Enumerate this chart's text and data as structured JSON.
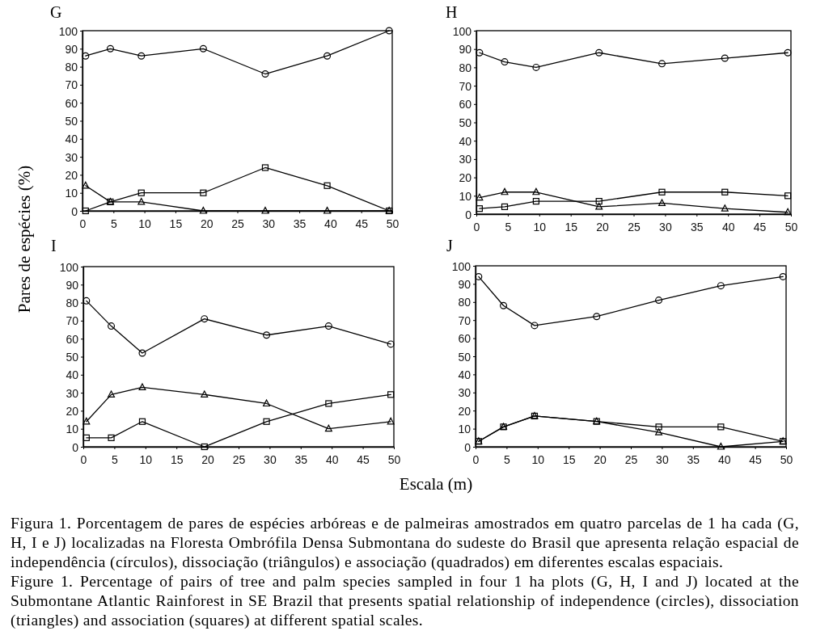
{
  "chart_data": [
    {
      "type": "line",
      "title": "G",
      "ylabel": "Pares de espécies (%)",
      "x": [
        0.5,
        4.5,
        9.5,
        19.5,
        29.5,
        39.5,
        49.5
      ],
      "xlim": [
        0,
        50
      ],
      "xticks": [
        0,
        5,
        10,
        15,
        20,
        25,
        30,
        35,
        40,
        45,
        50
      ],
      "ylim": [
        0,
        100
      ],
      "yticks": [
        0,
        10,
        20,
        30,
        40,
        50,
        60,
        70,
        80,
        90,
        100
      ],
      "series": [
        {
          "color": "#000000",
          "marker": "circle",
          "values": [
            86,
            90,
            86,
            90,
            76,
            86,
            100
          ]
        },
        {
          "color": "#000000",
          "marker": "triangle",
          "values": [
            14,
            5,
            5,
            0,
            0,
            0,
            0
          ]
        },
        {
          "color": "#000000",
          "marker": "square",
          "values": [
            0,
            5,
            10,
            10,
            24,
            14,
            0
          ]
        }
      ]
    },
    {
      "type": "line",
      "title": "H",
      "x": [
        0.5,
        4.5,
        9.5,
        19.5,
        29.5,
        39.5,
        49.5
      ],
      "xlim": [
        0,
        50
      ],
      "xticks": [
        0,
        5,
        10,
        15,
        20,
        25,
        30,
        35,
        40,
        45,
        50
      ],
      "ylim": [
        0,
        100
      ],
      "yticks": [
        0,
        10,
        20,
        30,
        40,
        50,
        60,
        70,
        80,
        90,
        100
      ],
      "series": [
        {
          "color": "#000000",
          "marker": "circle",
          "values": [
            88,
            83,
            80,
            88,
            82,
            85,
            88
          ]
        },
        {
          "color": "#000000",
          "marker": "triangle",
          "values": [
            9,
            12,
            12,
            4,
            6,
            3,
            1
          ]
        },
        {
          "color": "#000000",
          "marker": "square",
          "values": [
            3,
            4,
            7,
            7,
            12,
            12,
            10
          ]
        }
      ]
    },
    {
      "type": "line",
      "title": "I",
      "xlabel": "Escala (m)",
      "x": [
        0.5,
        4.5,
        9.5,
        19.5,
        29.5,
        39.5,
        49.5
      ],
      "xlim": [
        0,
        50
      ],
      "xticks": [
        0,
        5,
        10,
        15,
        20,
        25,
        30,
        35,
        40,
        45,
        50
      ],
      "ylim": [
        0,
        100
      ],
      "yticks": [
        0,
        10,
        20,
        30,
        40,
        50,
        60,
        70,
        80,
        90,
        100
      ],
      "series": [
        {
          "color": "#000000",
          "marker": "circle",
          "values": [
            81,
            67,
            52,
            71,
            62,
            67,
            57
          ]
        },
        {
          "color": "#000000",
          "marker": "triangle",
          "values": [
            14,
            29,
            33,
            29,
            24,
            10,
            14
          ]
        },
        {
          "color": "#000000",
          "marker": "square",
          "values": [
            5,
            5,
            14,
            0,
            14,
            24,
            29
          ]
        }
      ]
    },
    {
      "type": "line",
      "title": "J",
      "x": [
        0.5,
        4.5,
        9.5,
        19.5,
        29.5,
        39.5,
        49.5
      ],
      "xlim": [
        0,
        50
      ],
      "xticks": [
        0,
        5,
        10,
        15,
        20,
        25,
        30,
        35,
        40,
        45,
        50
      ],
      "ylim": [
        0,
        100
      ],
      "yticks": [
        0,
        10,
        20,
        30,
        40,
        50,
        60,
        70,
        80,
        90,
        100
      ],
      "series": [
        {
          "color": "#000000",
          "marker": "circle",
          "values": [
            94,
            78,
            67,
            72,
            81,
            89,
            94
          ]
        },
        {
          "color": "#000000",
          "marker": "triangle",
          "values": [
            3,
            11,
            17,
            14,
            8,
            0,
            3
          ]
        },
        {
          "color": "#000000",
          "marker": "square",
          "values": [
            3,
            11,
            17,
            14,
            11,
            11,
            3
          ]
        }
      ]
    },
    {
      "type": "other",
      "annotations": [
        "Figura 1. Porcentagem de pares de espécies arbóreas e de palmeiras amostrados em quatro parcelas de 1 ha cada (G, H, I e J) localizadas na Floresta Ombrófila Densa Submontana do sudeste do Brasil que apresenta relação espacial de independência (círculos), dissociação (triângulos) e associação (quadrados) em diferentes escalas espaciais.",
        "Figure 1. Percentage of pairs of tree and palm species sampled in four 1 ha plots (G, H, I and J) located at the Submontane Atlantic Rainforest in SE Brazil that presents spatial relationship of independence (circles), dissociation (triangles) and association (squares) at different spatial scales."
      ]
    }
  ]
}
